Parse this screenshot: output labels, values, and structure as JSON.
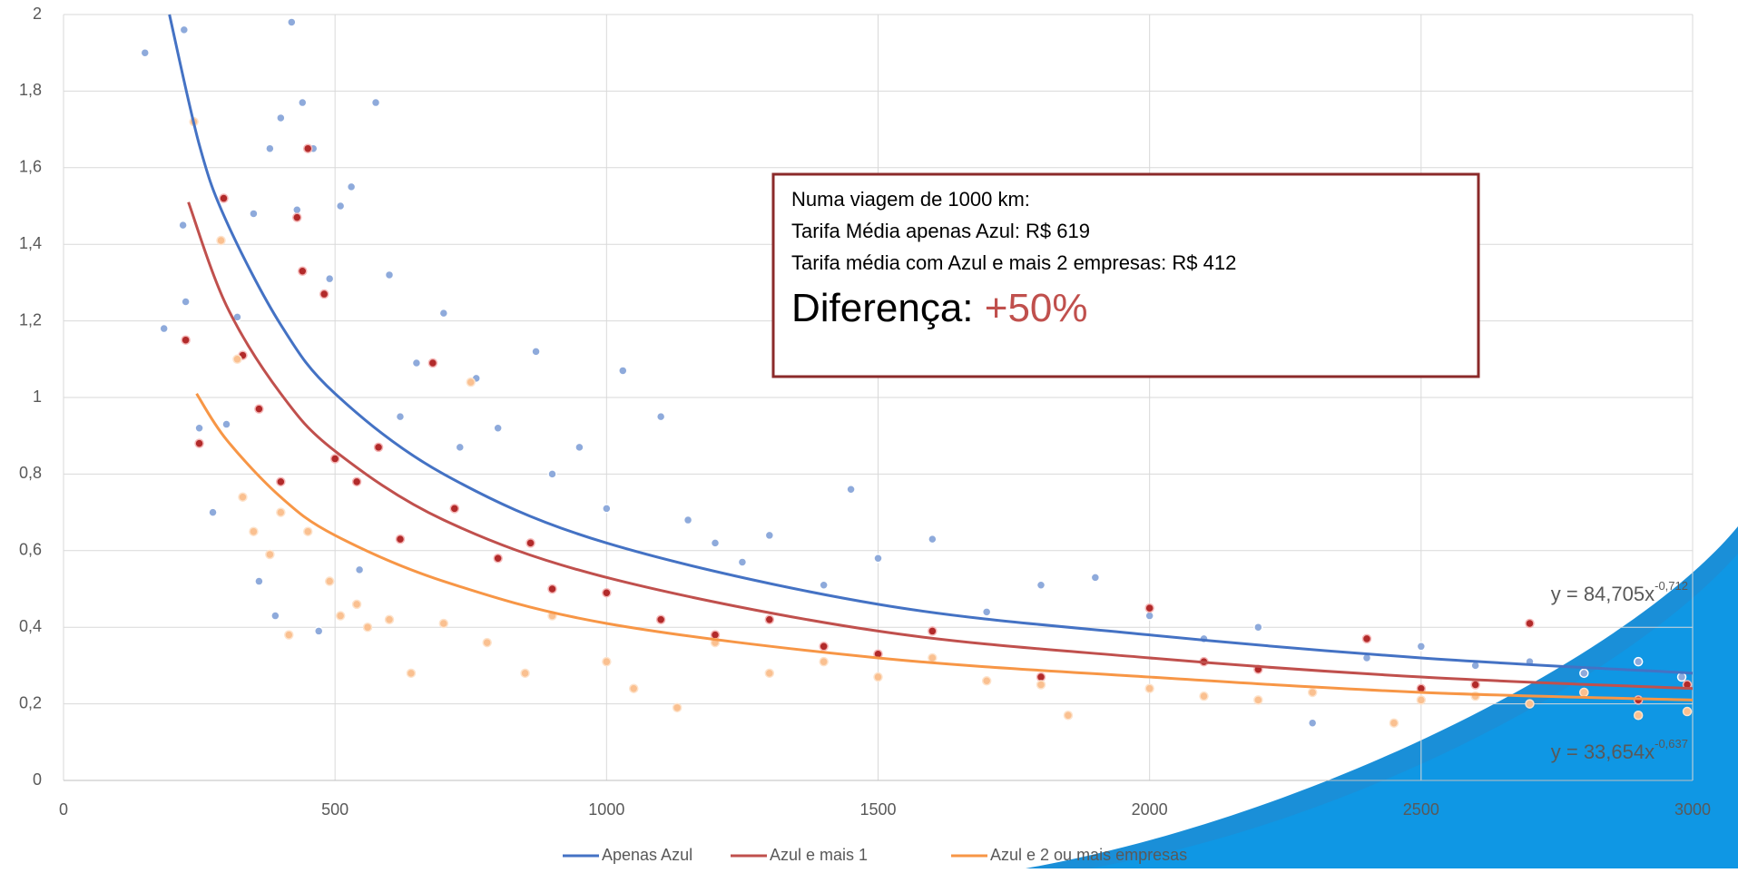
{
  "chart_data": {
    "type": "scatter",
    "xlim": [
      0,
      3000
    ],
    "xticks": [
      0,
      500,
      1000,
      1500,
      2000,
      2500,
      3000
    ],
    "ylim": [
      0,
      2
    ],
    "yticks": [
      0,
      {
        "value": 0.2,
        "label": "0,2"
      },
      {
        "value": 0.4,
        "label": "0,4"
      },
      {
        "value": 0.6,
        "label": "0,6"
      },
      {
        "value": 0.8,
        "label": "0,8"
      },
      1,
      {
        "value": 1.2,
        "label": "1,2"
      },
      {
        "value": 1.4,
        "label": "1,4"
      },
      {
        "value": 1.6,
        "label": "1,6"
      },
      {
        "value": 1.8,
        "label": "1,8"
      },
      2
    ],
    "grid": true,
    "legend": "bottom",
    "series": [
      {
        "name": "Apenas Azul",
        "color": "#4472c4",
        "point_color": "#8eaadb",
        "point_stroke": "#ffffff",
        "x": [
          150,
          185,
          220,
          222,
          225,
          250,
          275,
          300,
          320,
          350,
          360,
          380,
          390,
          400,
          420,
          430,
          440,
          460,
          470,
          490,
          510,
          530,
          545,
          575,
          600,
          620,
          650,
          700,
          730,
          760,
          800,
          870,
          900,
          950,
          1000,
          1030,
          1100,
          1150,
          1200,
          1250,
          1300,
          1400,
          1450,
          1500,
          1600,
          1700,
          1800,
          1900,
          2000,
          2100,
          2200,
          2300,
          2400,
          2500,
          2600,
          2700,
          2800,
          2900,
          2980
        ],
        "values": [
          1.9,
          1.18,
          1.45,
          1.96,
          1.25,
          0.92,
          0.7,
          0.93,
          1.21,
          1.48,
          0.52,
          1.65,
          0.43,
          1.73,
          1.98,
          1.49,
          1.77,
          1.65,
          0.39,
          1.31,
          1.5,
          1.55,
          0.55,
          1.77,
          1.32,
          0.95,
          1.09,
          1.22,
          0.87,
          1.05,
          0.92,
          1.12,
          0.8,
          0.87,
          0.71,
          1.07,
          0.95,
          0.68,
          0.62,
          0.57,
          0.64,
          0.51,
          0.76,
          0.58,
          0.63,
          0.44,
          0.51,
          0.53,
          0.43,
          0.37,
          0.4,
          0.15,
          0.32,
          0.35,
          0.3,
          0.31,
          0.28,
          0.31,
          0.27
        ],
        "trend": {
          "x": [
            195,
            250,
            300,
            400,
            500,
            700,
            1000,
            1500,
            2000,
            2500,
            3000
          ],
          "values": [
            2.0,
            1.66,
            1.46,
            1.19,
            1.01,
            0.8,
            0.62,
            0.46,
            0.38,
            0.32,
            0.28
          ]
        }
      },
      {
        "name": "Azul e mais 1",
        "color": "#c0504d",
        "point_color": "#b22a2a",
        "point_stroke": "#f4b6b6",
        "x": [
          225,
          250,
          295,
          330,
          360,
          400,
          430,
          440,
          450,
          480,
          500,
          540,
          580,
          620,
          680,
          720,
          800,
          860,
          900,
          1000,
          1100,
          1200,
          1300,
          1400,
          1500,
          1600,
          1800,
          2000,
          2100,
          2200,
          2400,
          2500,
          2600,
          2700,
          2800,
          2900,
          2990
        ],
        "values": [
          1.15,
          0.88,
          1.52,
          1.11,
          0.97,
          0.78,
          1.47,
          1.33,
          1.65,
          1.27,
          0.84,
          0.78,
          0.87,
          0.63,
          1.09,
          0.71,
          0.58,
          0.62,
          0.5,
          0.49,
          0.42,
          0.38,
          0.42,
          0.35,
          0.33,
          0.39,
          0.27,
          0.45,
          0.31,
          0.29,
          0.37,
          0.24,
          0.25,
          0.41,
          0.23,
          0.21,
          0.25
        ],
        "trend": {
          "x": [
            230,
            300,
            400,
            500,
            700,
            1000,
            1500,
            2000,
            2500,
            3000
          ],
          "values": [
            1.51,
            1.24,
            1.01,
            0.86,
            0.68,
            0.53,
            0.39,
            0.32,
            0.27,
            0.24
          ]
        }
      },
      {
        "name": "Azul e 2 ou mais empresas",
        "color": "#f79646",
        "point_color": "#fac090",
        "point_stroke": "#fde3cc",
        "x": [
          240,
          290,
          320,
          330,
          350,
          380,
          400,
          415,
          450,
          490,
          510,
          540,
          560,
          600,
          640,
          700,
          750,
          780,
          850,
          900,
          1000,
          1050,
          1130,
          1200,
          1300,
          1400,
          1500,
          1600,
          1700,
          1800,
          1850,
          2000,
          2100,
          2200,
          2300,
          2450,
          2500,
          2600,
          2700,
          2800,
          2900,
          2990
        ],
        "values": [
          1.72,
          1.41,
          1.1,
          0.74,
          0.65,
          0.59,
          0.7,
          0.38,
          0.65,
          0.52,
          0.43,
          0.46,
          0.4,
          0.42,
          0.28,
          0.41,
          1.04,
          0.36,
          0.28,
          0.43,
          0.31,
          0.24,
          0.19,
          0.36,
          0.28,
          0.31,
          0.27,
          0.32,
          0.26,
          0.25,
          0.17,
          0.24,
          0.22,
          0.21,
          0.23,
          0.15,
          0.21,
          0.22,
          0.2,
          0.23,
          0.17,
          0.18
        ],
        "trend": {
          "x": [
            245,
            300,
            400,
            500,
            700,
            1000,
            1500,
            2000,
            2500,
            3000
          ],
          "values": [
            1.01,
            0.89,
            0.74,
            0.64,
            0.52,
            0.41,
            0.32,
            0.27,
            0.23,
            0.21
          ]
        }
      }
    ],
    "annotation": {
      "lines": [
        "Numa viagem de 1000 km:",
        "Tarifa Média apenas Azul: R$ 619",
        "Tarifa média com Azul e mais 2 empresas: R$ 412"
      ],
      "headline": "Diferença: ",
      "highlight": "+50%"
    },
    "equations": [
      {
        "text": "y = 84,705x",
        "exponent": "-0,712"
      },
      {
        "text": "y = 33,654x",
        "exponent": "-0,637"
      }
    ]
  }
}
